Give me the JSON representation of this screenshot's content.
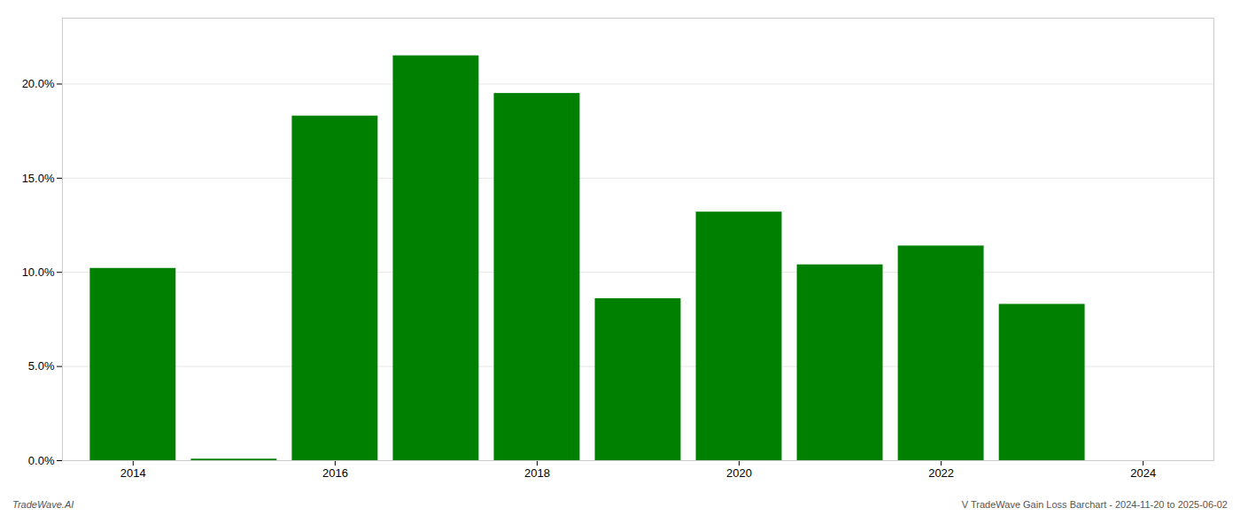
{
  "chart_data": {
    "type": "bar",
    "x": [
      2014,
      2015,
      2016,
      2017,
      2018,
      2019,
      2020,
      2021,
      2022,
      2023
    ],
    "values": [
      0.1021,
      0.0008,
      0.183,
      0.215,
      0.195,
      0.086,
      0.132,
      0.104,
      0.114,
      0.083
    ],
    "color": "#008000",
    "xlim": [
      2013.3,
      2024.7
    ],
    "xticks": [
      2014,
      2016,
      2018,
      2020,
      2022,
      2024
    ],
    "ylim": [
      0,
      0.235
    ],
    "yticks": [
      {
        "value": 0.0,
        "label": "0.0%"
      },
      {
        "value": 0.05,
        "label": "5.0%"
      },
      {
        "value": 0.1,
        "label": "10.0%"
      },
      {
        "value": 0.15,
        "label": "15.0%"
      },
      {
        "value": 0.2,
        "label": "20.0%"
      }
    ],
    "grid": true,
    "annotations": [
      "TradeWave.AI",
      "V TradeWave Gain Loss Barchart - 2024-11-20 to 2025-06-02"
    ]
  }
}
